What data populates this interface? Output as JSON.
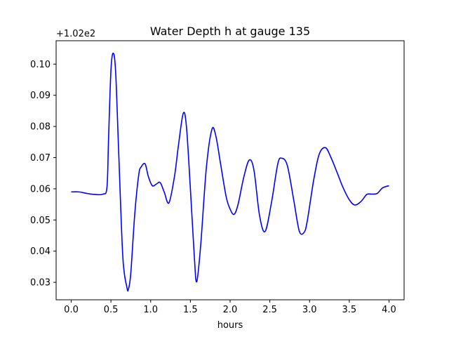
{
  "chart_data": {
    "type": "line",
    "title": "Water Depth h at gauge 135",
    "xlabel": "hours",
    "ylabel": "",
    "offset_label": "+1.02e2",
    "xlim": [
      -0.19,
      4.19
    ],
    "ylim": [
      0.0244,
      0.1075
    ],
    "x_ticks": [
      0.0,
      0.5,
      1.0,
      1.5,
      2.0,
      2.5,
      3.0,
      3.5,
      4.0
    ],
    "x_tick_labels": [
      "0.0",
      "0.5",
      "1.0",
      "1.5",
      "2.0",
      "2.5",
      "3.0",
      "3.5",
      "4.0"
    ],
    "y_ticks": [
      0.03,
      0.04,
      0.05,
      0.06,
      0.07,
      0.08,
      0.09,
      0.1
    ],
    "y_tick_labels": [
      "0.03",
      "0.04",
      "0.05",
      "0.06",
      "0.07",
      "0.08",
      "0.09",
      "0.10"
    ],
    "grid": false,
    "series": [
      {
        "color": "#0000ff",
        "x": [
          0.0,
          0.1,
          0.2,
          0.3,
          0.4,
          0.45,
          0.47,
          0.5,
          0.53,
          0.56,
          0.6,
          0.65,
          0.7,
          0.72,
          0.75,
          0.8,
          0.85,
          0.88,
          0.93,
          0.97,
          1.02,
          1.07,
          1.12,
          1.17,
          1.23,
          1.3,
          1.35,
          1.41,
          1.45,
          1.5,
          1.55,
          1.58,
          1.63,
          1.7,
          1.77,
          1.82,
          1.88,
          1.95,
          2.0,
          2.05,
          2.1,
          2.17,
          2.24,
          2.3,
          2.37,
          2.44,
          2.52,
          2.6,
          2.65,
          2.72,
          2.8,
          2.87,
          2.93,
          2.97,
          3.05,
          3.12,
          3.2,
          3.27,
          3.35,
          3.42,
          3.5,
          3.57,
          3.65,
          3.72,
          3.78,
          3.85,
          3.92,
          4.0
        ],
        "y": [
          0.059,
          0.059,
          0.0585,
          0.0582,
          0.0583,
          0.0605,
          0.076,
          0.098,
          0.1035,
          0.097,
          0.07,
          0.038,
          0.0285,
          0.0278,
          0.033,
          0.052,
          0.0645,
          0.067,
          0.068,
          0.064,
          0.061,
          0.0615,
          0.062,
          0.059,
          0.0555,
          0.064,
          0.074,
          0.0842,
          0.08,
          0.06,
          0.038,
          0.0302,
          0.042,
          0.0665,
          0.079,
          0.077,
          0.068,
          0.0575,
          0.0535,
          0.0518,
          0.055,
          0.0635,
          0.0692,
          0.066,
          0.0515,
          0.0463,
          0.0555,
          0.068,
          0.0698,
          0.0675,
          0.0565,
          0.0465,
          0.046,
          0.0495,
          0.0625,
          0.071,
          0.0732,
          0.07,
          0.065,
          0.0605,
          0.0565,
          0.0548,
          0.056,
          0.0582,
          0.0583,
          0.0585,
          0.0603,
          0.061
        ]
      }
    ]
  }
}
